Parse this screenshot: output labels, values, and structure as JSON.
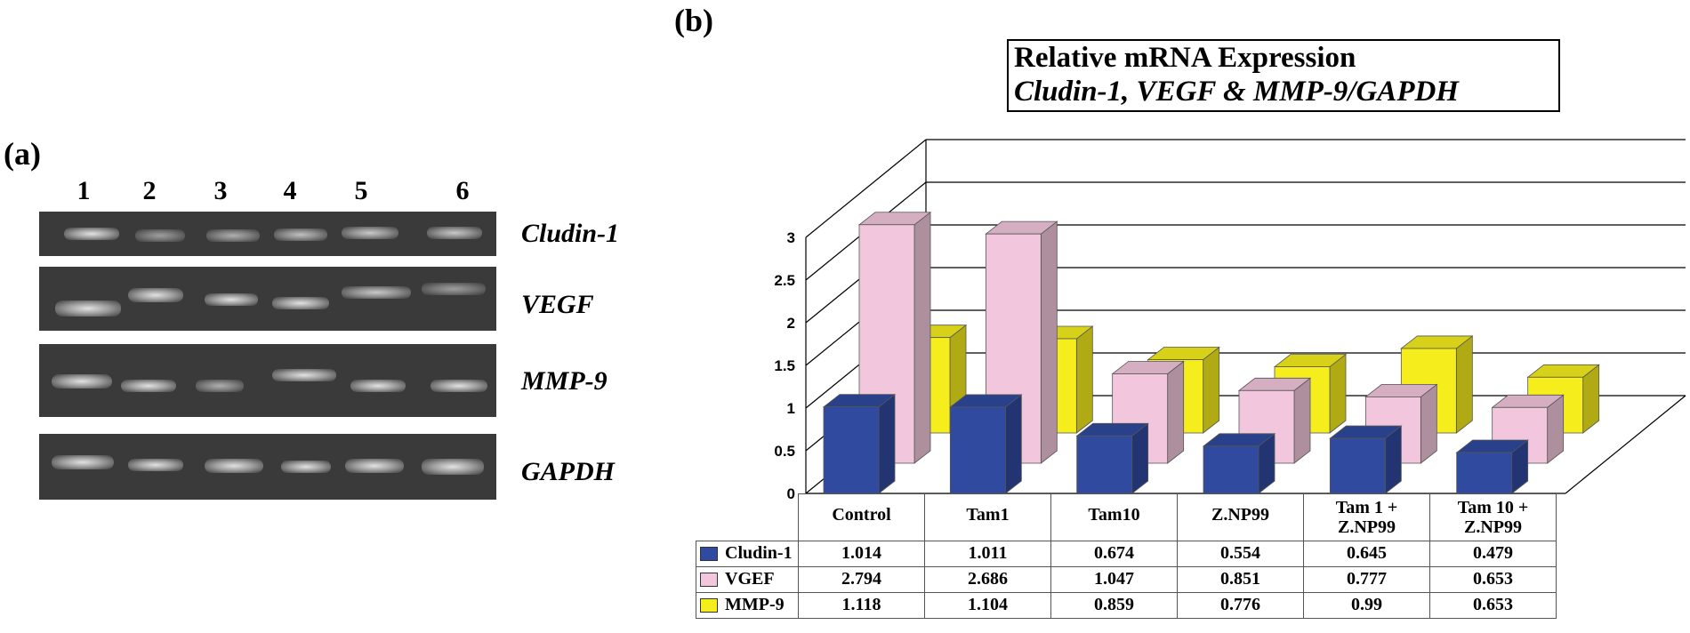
{
  "panel_a": {
    "label": "(a)",
    "lanes": [
      "1",
      "2",
      "3",
      "4",
      "5",
      "6"
    ],
    "genes": [
      "Cludin-1",
      "VEGF",
      "MMP-9",
      "GAPDH"
    ]
  },
  "panel_b": {
    "label": "(b)",
    "title_line1": "Relative mRNA Expression",
    "title_line2": "Cludin-1, VEGF & MMP-9/GAPDH"
  },
  "chart_data": {
    "type": "bar",
    "title": "Relative mRNA Expression Cludin-1, VEGF & MMP-9/GAPDH",
    "categories": [
      "Control",
      "Tam1",
      "Tam10",
      "Z.NP99",
      "Tam 1 + Z.NP99",
      "Tam 10 + Z.NP99"
    ],
    "series": [
      {
        "name": "Cludin-1",
        "color": "#2f4a9e",
        "values": [
          1.014,
          1.011,
          0.674,
          0.554,
          0.645,
          0.479
        ]
      },
      {
        "name": "VGEF",
        "color": "#f2c6dc",
        "values": [
          2.794,
          2.686,
          1.047,
          0.851,
          0.777,
          0.653
        ]
      },
      {
        "name": "MMP-9",
        "color": "#f5ee1c",
        "values": [
          1.118,
          1.104,
          0.859,
          0.776,
          0.99,
          0.653
        ]
      }
    ],
    "table_values": {
      "Cludin-1": [
        "1.014",
        "1.011",
        "0.674",
        "0.554",
        "0.645",
        "0.479"
      ],
      "VGEF": [
        "2.794",
        "2.686",
        "1.047",
        "0.851",
        "0.777",
        "0.653"
      ],
      "MMP-9": [
        "1.118",
        "1.104",
        "0.859",
        "0.776",
        "0.99",
        "0.653"
      ]
    },
    "y_ticks": [
      "0",
      "0.5",
      "1",
      "1.5",
      "2",
      "2.5",
      "3"
    ],
    "ylim": [
      0,
      3
    ],
    "grid": true,
    "legend_position": "table-left"
  }
}
